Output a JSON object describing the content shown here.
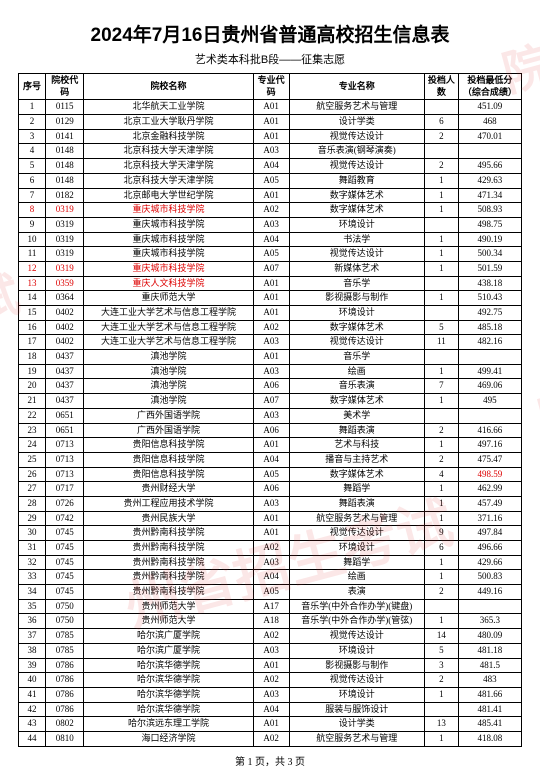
{
  "title": "2024年7月16日贵州省普通高校招生信息表",
  "subtitle": "艺术类本科批B段——征集志愿",
  "headers": {
    "seq": "序号",
    "school_code": "院校代码",
    "school_name": "院校名称",
    "major_code": "专业代码",
    "major_name": "专业名称",
    "count": "投档人数",
    "score": "投档最低分（综合成绩）"
  },
  "rows": [
    {
      "seq": "1",
      "code": "0115",
      "school": "北华航天工业学院",
      "mc": "A01",
      "major": "航空服务艺术与管理",
      "cnt": "",
      "score": "451.09"
    },
    {
      "seq": "2",
      "code": "0129",
      "school": "北京工业大学耿丹学院",
      "mc": "A01",
      "major": "设计学类",
      "cnt": "6",
      "score": "468"
    },
    {
      "seq": "3",
      "code": "0141",
      "school": "北京金融科技学院",
      "mc": "A01",
      "major": "视觉传达设计",
      "cnt": "2",
      "score": "470.01"
    },
    {
      "seq": "4",
      "code": "0148",
      "school": "北京科技大学天津学院",
      "mc": "A03",
      "major": "音乐表演(钢琴演奏)",
      "cnt": "",
      "score": ""
    },
    {
      "seq": "5",
      "code": "0148",
      "school": "北京科技大学天津学院",
      "mc": "A04",
      "major": "视觉传达设计",
      "cnt": "2",
      "score": "495.66"
    },
    {
      "seq": "6",
      "code": "0148",
      "school": "北京科技大学天津学院",
      "mc": "A05",
      "major": "舞蹈教育",
      "cnt": "1",
      "score": "429.63"
    },
    {
      "seq": "7",
      "code": "0182",
      "school": "北京邮电大学世纪学院",
      "mc": "A01",
      "major": "数字媒体艺术",
      "cnt": "1",
      "score": "471.34"
    },
    {
      "seq": "8",
      "code": "0319",
      "school": "重庆城市科技学院",
      "mc": "A02",
      "major": "数字媒体艺术",
      "cnt": "1",
      "score": "508.93",
      "red": true
    },
    {
      "seq": "9",
      "code": "0319",
      "school": "重庆城市科技学院",
      "mc": "A03",
      "major": "环境设计",
      "cnt": "",
      "score": "498.75"
    },
    {
      "seq": "10",
      "code": "0319",
      "school": "重庆城市科技学院",
      "mc": "A04",
      "major": "书法学",
      "cnt": "1",
      "score": "490.19"
    },
    {
      "seq": "11",
      "code": "0319",
      "school": "重庆城市科技学院",
      "mc": "A05",
      "major": "视觉传达设计",
      "cnt": "1",
      "score": "500.34"
    },
    {
      "seq": "12",
      "code": "0319",
      "school": "重庆城市科技学院",
      "mc": "A07",
      "major": "新媒体艺术",
      "cnt": "1",
      "score": "501.59",
      "red": true
    },
    {
      "seq": "13",
      "code": "0359",
      "school": "重庆人文科技学院",
      "mc": "A01",
      "major": "音乐学",
      "cnt": "",
      "score": "438.18",
      "red": true
    },
    {
      "seq": "14",
      "code": "0364",
      "school": "重庆师范大学",
      "mc": "A01",
      "major": "影视摄影与制作",
      "cnt": "1",
      "score": "510.43"
    },
    {
      "seq": "15",
      "code": "0402",
      "school": "大连工业大学艺术与信息工程学院",
      "mc": "A01",
      "major": "环境设计",
      "cnt": "",
      "score": "492.75"
    },
    {
      "seq": "16",
      "code": "0402",
      "school": "大连工业大学艺术与信息工程学院",
      "mc": "A02",
      "major": "数字媒体艺术",
      "cnt": "5",
      "score": "485.18"
    },
    {
      "seq": "17",
      "code": "0402",
      "school": "大连工业大学艺术与信息工程学院",
      "mc": "A03",
      "major": "视觉传达设计",
      "cnt": "11",
      "score": "482.16"
    },
    {
      "seq": "18",
      "code": "0437",
      "school": "滇池学院",
      "mc": "A01",
      "major": "音乐学",
      "cnt": "",
      "score": ""
    },
    {
      "seq": "19",
      "code": "0437",
      "school": "滇池学院",
      "mc": "A03",
      "major": "绘画",
      "cnt": "1",
      "score": "499.41"
    },
    {
      "seq": "20",
      "code": "0437",
      "school": "滇池学院",
      "mc": "A06",
      "major": "音乐表演",
      "cnt": "7",
      "score": "469.06"
    },
    {
      "seq": "21",
      "code": "0437",
      "school": "滇池学院",
      "mc": "A07",
      "major": "数字媒体艺术",
      "cnt": "1",
      "score": "495"
    },
    {
      "seq": "22",
      "code": "0651",
      "school": "广西外国语学院",
      "mc": "A03",
      "major": "美术学",
      "cnt": "",
      "score": ""
    },
    {
      "seq": "23",
      "code": "0651",
      "school": "广西外国语学院",
      "mc": "A06",
      "major": "舞蹈表演",
      "cnt": "2",
      "score": "416.66"
    },
    {
      "seq": "24",
      "code": "0713",
      "school": "贵阳信息科技学院",
      "mc": "A01",
      "major": "艺术与科技",
      "cnt": "1",
      "score": "497.16"
    },
    {
      "seq": "25",
      "code": "0713",
      "school": "贵阳信息科技学院",
      "mc": "A04",
      "major": "播音与主持艺术",
      "cnt": "2",
      "score": "475.47"
    },
    {
      "seq": "26",
      "code": "0713",
      "school": "贵阳信息科技学院",
      "mc": "A05",
      "major": "数字媒体艺术",
      "cnt": "4",
      "score": "498.59",
      "scorered": true
    },
    {
      "seq": "27",
      "code": "0717",
      "school": "贵州财经大学",
      "mc": "A06",
      "major": "舞蹈学",
      "cnt": "1",
      "score": "462.99"
    },
    {
      "seq": "28",
      "code": "0726",
      "school": "贵州工程应用技术学院",
      "mc": "A03",
      "major": "舞蹈表演",
      "cnt": "1",
      "score": "457.49"
    },
    {
      "seq": "29",
      "code": "0742",
      "school": "贵州民族大学",
      "mc": "A01",
      "major": "航空服务艺术与管理",
      "cnt": "1",
      "score": "371.16"
    },
    {
      "seq": "30",
      "code": "0745",
      "school": "贵州黔南科技学院",
      "mc": "A01",
      "major": "视觉传达设计",
      "cnt": "9",
      "score": "497.84"
    },
    {
      "seq": "31",
      "code": "0745",
      "school": "贵州黔南科技学院",
      "mc": "A02",
      "major": "环境设计",
      "cnt": "6",
      "score": "496.66"
    },
    {
      "seq": "32",
      "code": "0745",
      "school": "贵州黔南科技学院",
      "mc": "A03",
      "major": "舞蹈学",
      "cnt": "1",
      "score": "429.66"
    },
    {
      "seq": "33",
      "code": "0745",
      "school": "贵州黔南科技学院",
      "mc": "A04",
      "major": "绘画",
      "cnt": "1",
      "score": "500.83"
    },
    {
      "seq": "34",
      "code": "0745",
      "school": "贵州黔南科技学院",
      "mc": "A05",
      "major": "表演",
      "cnt": "2",
      "score": "449.16"
    },
    {
      "seq": "35",
      "code": "0750",
      "school": "贵州师范大学",
      "mc": "A17",
      "major": "音乐学(中外合作办学)(键盘)",
      "cnt": "",
      "score": ""
    },
    {
      "seq": "36",
      "code": "0750",
      "school": "贵州师范大学",
      "mc": "A18",
      "major": "音乐学(中外合作办学)(管弦)",
      "cnt": "1",
      "score": "365.3"
    },
    {
      "seq": "37",
      "code": "0785",
      "school": "哈尔滨广厦学院",
      "mc": "A02",
      "major": "视觉传达设计",
      "cnt": "14",
      "score": "480.09"
    },
    {
      "seq": "38",
      "code": "0785",
      "school": "哈尔滨广厦学院",
      "mc": "A03",
      "major": "环境设计",
      "cnt": "5",
      "score": "481.18"
    },
    {
      "seq": "39",
      "code": "0786",
      "school": "哈尔滨华德学院",
      "mc": "A01",
      "major": "影视摄影与制作",
      "cnt": "3",
      "score": "481.5"
    },
    {
      "seq": "40",
      "code": "0786",
      "school": "哈尔滨华德学院",
      "mc": "A02",
      "major": "视觉传达设计",
      "cnt": "2",
      "score": "483"
    },
    {
      "seq": "41",
      "code": "0786",
      "school": "哈尔滨华德学院",
      "mc": "A03",
      "major": "环境设计",
      "cnt": "1",
      "score": "481.66"
    },
    {
      "seq": "42",
      "code": "0786",
      "school": "哈尔滨华德学院",
      "mc": "A04",
      "major": "服装与服饰设计",
      "cnt": "",
      "score": "481.41"
    },
    {
      "seq": "43",
      "code": "0802",
      "school": "哈尔滨远东理工学院",
      "mc": "A01",
      "major": "设计学类",
      "cnt": "13",
      "score": "485.41"
    },
    {
      "seq": "44",
      "code": "0810",
      "school": "海口经济学院",
      "mc": "A02",
      "major": "航空服务艺术与管理",
      "cnt": "1",
      "score": "418.08"
    }
  ],
  "footer": "第 1 页，共 3 页"
}
